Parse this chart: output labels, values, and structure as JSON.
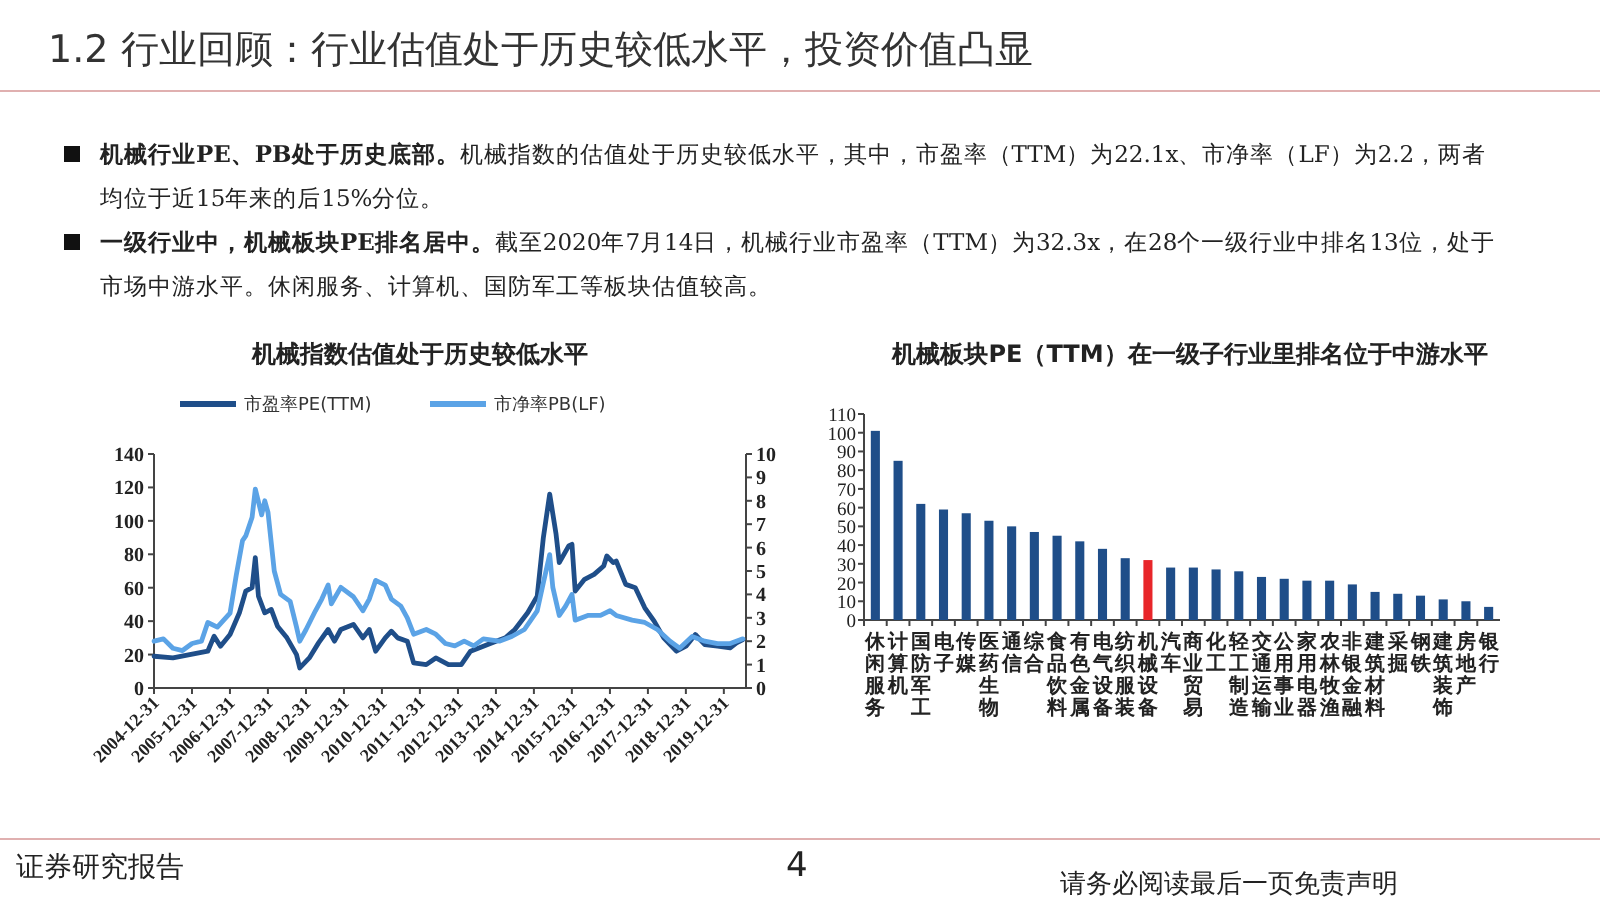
{
  "chart_data": [
    {
      "type": "other",
      "title": "1.2 行业回顾：行业估值处于历史较低水平，投资价值凸显",
      "annotations": [
        "机械行业PE、PB处于历史底部。",
        "机械指数的估值处于历史较低水平，其中，市盈率（TTM）为22.1x、市净率（LF）为2.2，两者均位于近15年来的后15%分位。",
        "一级行业中，机械板块PE排名居中。",
        "截至2020年7月14日，机械行业市盈率（TTM）为32.3x，在28个一级行业中排名13位，处于市场中游水平。休闲服务、计算机、国防军工等板块估值较高。",
        "证券研究报告",
        "4",
        "请务必阅读最后一页免责声明"
      ]
    },
    {
      "type": "line",
      "title": "机械指数估值处于历史较低水平",
      "legend": "top",
      "xlim": [
        "2004-12-31",
        "2020-07-31"
      ],
      "xticks": [
        "2004-12-31",
        "2005-12-31",
        "2006-12-31",
        "2007-12-31",
        "2008-12-31",
        "2009-12-31",
        "2010-12-31",
        "2011-12-31",
        "2012-12-31",
        "2013-12-31",
        "2014-12-31",
        "2015-12-31",
        "2016-12-31",
        "2017-12-31",
        "2018-12-31",
        "2019-12-31"
      ],
      "ylim": [
        0,
        140
      ],
      "yticks": [
        0,
        20,
        40,
        60,
        80,
        100,
        120,
        140
      ],
      "y2lim": [
        0,
        10
      ],
      "y2ticks": [
        0,
        1,
        2,
        3,
        4,
        5,
        6,
        7,
        8,
        9,
        10
      ],
      "series": [
        {
          "name": "市盈率PE(TTM)",
          "color": "#1f4e89",
          "x": [
            "2005-01",
            "2005-07",
            "2006-06",
            "2006-08",
            "2006-10",
            "2007-01",
            "2007-04",
            "2007-06",
            "2007-08",
            "2007-09",
            "2007-10",
            "2007-12",
            "2008-02",
            "2008-04",
            "2008-07",
            "2008-10",
            "2008-11",
            "2009-02",
            "2009-05",
            "2009-08",
            "2009-10",
            "2009-12",
            "2010-04",
            "2010-07",
            "2010-09",
            "2010-11",
            "2011-02",
            "2011-04",
            "2011-06",
            "2011-09",
            "2011-11",
            "2012-03",
            "2012-06",
            "2012-10",
            "2013-02",
            "2013-05",
            "2013-09",
            "2014-01",
            "2014-04",
            "2014-07",
            "2014-11",
            "2015-02",
            "2015-04",
            "2015-06",
            "2015-08",
            "2015-09",
            "2015-12",
            "2016-01",
            "2016-02",
            "2016-05",
            "2016-08",
            "2016-11",
            "2016-12",
            "2017-02",
            "2017-03",
            "2017-06",
            "2017-09",
            "2017-12",
            "2018-03",
            "2018-06",
            "2018-10",
            "2019-01",
            "2019-04",
            "2019-07",
            "2019-11",
            "2020-03",
            "2020-05",
            "2020-07"
          ],
          "values": [
            19,
            18,
            22,
            31,
            25,
            32,
            45,
            58,
            60,
            78,
            55,
            45,
            47,
            37,
            30,
            20,
            12,
            18,
            27,
            35,
            28,
            35,
            38,
            30,
            35,
            22,
            30,
            34,
            30,
            28,
            15,
            14,
            18,
            14,
            14,
            22,
            25,
            28,
            30,
            35,
            45,
            55,
            90,
            116,
            92,
            75,
            85,
            86,
            58,
            65,
            68,
            73,
            79,
            75,
            76,
            62,
            60,
            48,
            40,
            30,
            22,
            25,
            32,
            26,
            25,
            24,
            27,
            29
          ]
        },
        {
          "name": "市净率PB(LF)",
          "color": "#5ba3e6",
          "axis": "y2",
          "x": [
            "2005-01",
            "2005-04",
            "2005-07",
            "2005-10",
            "2006-01",
            "2006-04",
            "2006-06",
            "2006-09",
            "2007-01",
            "2007-03",
            "2007-05",
            "2007-06",
            "2007-08",
            "2007-09",
            "2007-11",
            "2007-12",
            "2008-01",
            "2008-03",
            "2008-05",
            "2008-08",
            "2008-10",
            "2008-11",
            "2009-01",
            "2009-04",
            "2009-06",
            "2009-08",
            "2009-09",
            "2009-12",
            "2010-04",
            "2010-07",
            "2010-09",
            "2010-11",
            "2011-02",
            "2011-04",
            "2011-07",
            "2011-09",
            "2011-11",
            "2012-03",
            "2012-06",
            "2012-09",
            "2012-12",
            "2013-03",
            "2013-06",
            "2013-09",
            "2014-02",
            "2014-06",
            "2014-10",
            "2015-02",
            "2015-04",
            "2015-06",
            "2015-07",
            "2015-09",
            "2015-11",
            "2016-01",
            "2016-02",
            "2016-06",
            "2016-10",
            "2017-01",
            "2017-03",
            "2017-08",
            "2017-12",
            "2018-04",
            "2018-08",
            "2018-11",
            "2019-03",
            "2019-07",
            "2019-11",
            "2020-03",
            "2020-07"
          ],
          "values": [
            2.0,
            2.1,
            1.7,
            1.6,
            1.9,
            2.0,
            2.8,
            2.6,
            3.2,
            4.8,
            6.3,
            6.5,
            7.3,
            8.5,
            7.4,
            8.0,
            7.5,
            5.0,
            4.0,
            3.7,
            2.6,
            2.0,
            2.5,
            3.3,
            3.8,
            4.4,
            3.6,
            4.3,
            3.9,
            3.3,
            3.8,
            4.6,
            4.4,
            3.8,
            3.5,
            3.0,
            2.3,
            2.5,
            2.3,
            1.9,
            1.8,
            2.0,
            1.8,
            2.1,
            2.0,
            2.2,
            2.5,
            3.3,
            4.5,
            5.7,
            4.3,
            3.1,
            3.5,
            4.0,
            2.9,
            3.1,
            3.1,
            3.3,
            3.1,
            2.9,
            2.8,
            2.5,
            2.0,
            1.7,
            2.2,
            2.0,
            1.9,
            1.9,
            2.1
          ]
        }
      ]
    },
    {
      "type": "bar",
      "title": "机械板块PE（TTM）在一级子行业里排名位于中游水平",
      "categories": [
        "休闲服务",
        "计算机",
        "国防军工",
        "电子",
        "传媒",
        "医药生物",
        "通信",
        "综合",
        "食品饮料",
        "有色金属",
        "电气设备",
        "纺织服装",
        "机械设备",
        "汽车",
        "商业贸易",
        "化工",
        "轻工制造",
        "交通运输",
        "公用事业",
        "家用电器",
        "农林牧渔",
        "非银金融",
        "建筑材料",
        "采掘",
        "钢铁",
        "建筑装饰",
        "房地产",
        "银行"
      ],
      "values": [
        101,
        85,
        62,
        59,
        57,
        53,
        50,
        47,
        45,
        42,
        38,
        33,
        32,
        28,
        28,
        27,
        26,
        23,
        22,
        21,
        21,
        19,
        15,
        14,
        13,
        11,
        10,
        7
      ],
      "colors": [
        "#1f4e89",
        "#1f4e89",
        "#1f4e89",
        "#1f4e89",
        "#1f4e89",
        "#1f4e89",
        "#1f4e89",
        "#1f4e89",
        "#1f4e89",
        "#1f4e89",
        "#1f4e89",
        "#1f4e89",
        "#e8262a",
        "#1f4e89",
        "#1f4e89",
        "#1f4e89",
        "#1f4e89",
        "#1f4e89",
        "#1f4e89",
        "#1f4e89",
        "#1f4e89",
        "#1f4e89",
        "#1f4e89",
        "#1f4e89",
        "#1f4e89",
        "#1f4e89",
        "#1f4e89",
        "#1f4e89"
      ],
      "ylim": [
        0,
        110
      ],
      "yticks": [
        0,
        10,
        20,
        30,
        40,
        50,
        60,
        70,
        80,
        90,
        100,
        110
      ]
    }
  ]
}
